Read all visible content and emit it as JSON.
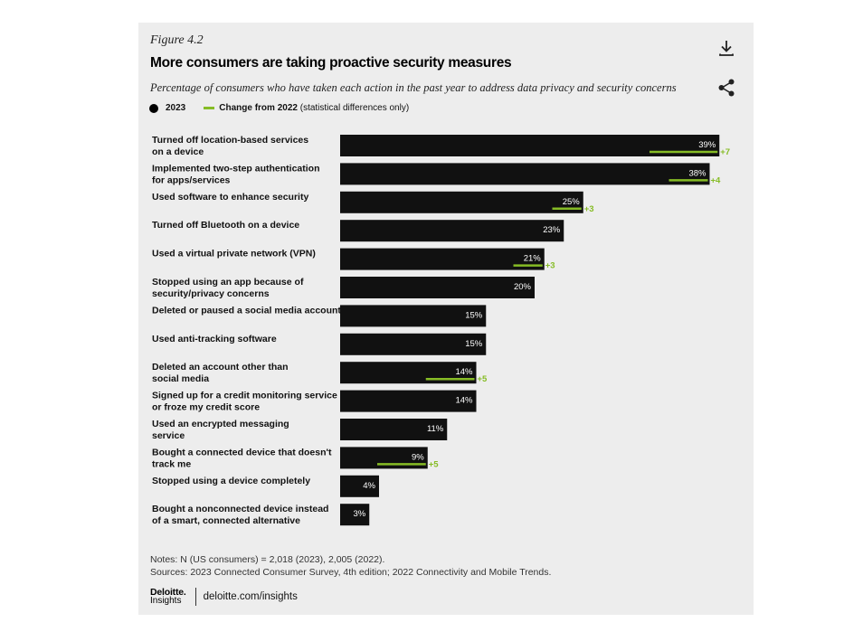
{
  "header": {
    "figure_label": "Figure 4.2",
    "title": "More consumers are taking proactive security measures",
    "subtitle": "Percentage of consumers who have taken each action in the past year to address data privacy and security concerns"
  },
  "legend": {
    "series_2023": "2023",
    "change_label": "Change from 2022",
    "change_note": "(statistical differences only)"
  },
  "icons": {
    "download": "download-icon",
    "share": "share-icon"
  },
  "colors": {
    "bar": "#111111",
    "accent": "#86bc25",
    "panel": "#ededed"
  },
  "chart_data": {
    "type": "bar",
    "orientation": "horizontal",
    "title": "More consumers are taking proactive security measures",
    "xlim": [
      0,
      40
    ],
    "categories": [
      [
        "Turned off location-based services",
        "on a device"
      ],
      [
        "Implemented two-step authentication",
        "for apps/services"
      ],
      [
        "Used software to enhance security"
      ],
      [
        "Turned off Bluetooth on a device"
      ],
      [
        "Used a virtual private network (VPN)"
      ],
      [
        "Stopped using an app because of",
        "security/privacy concerns"
      ],
      [
        "Deleted or paused a social media account"
      ],
      [
        "Used anti-tracking software"
      ],
      [
        "Deleted an account other than",
        "social media"
      ],
      [
        "Signed up for a credit monitoring service",
        "or froze my credit score"
      ],
      [
        "Used an encrypted messaging",
        "service"
      ],
      [
        "Bought a connected device that doesn't",
        "track me"
      ],
      [
        "Stopped using a device completely"
      ],
      [
        "Bought a nonconnected device instead",
        "of a smart, connected alternative"
      ]
    ],
    "values": [
      39,
      38,
      25,
      23,
      21,
      20,
      15,
      15,
      14,
      14,
      11,
      9,
      4,
      3
    ],
    "value_labels": [
      "39%",
      "38%",
      "25%",
      "23%",
      "21%",
      "20%",
      "15%",
      "15%",
      "14%",
      "14%",
      "11%",
      "9%",
      "4%",
      "3%"
    ],
    "changes": [
      7,
      4,
      3,
      null,
      3,
      null,
      null,
      null,
      5,
      null,
      null,
      5,
      null,
      null
    ],
    "change_labels": [
      "+7",
      "+4",
      "+3",
      null,
      "+3",
      null,
      null,
      null,
      "+5",
      null,
      null,
      "+5",
      null,
      null
    ]
  },
  "notes": {
    "line1": "Notes: N (US consumers) = 2,018 (2023), 2,005 (2022).",
    "line2": "Sources: 2023 Connected Consumer Survey, 4th edition; 2022 Connectivity and Mobile Trends."
  },
  "footer": {
    "brand_top": "Deloitte.",
    "brand_bottom": "Insights",
    "site": "deloitte.com/insights"
  }
}
